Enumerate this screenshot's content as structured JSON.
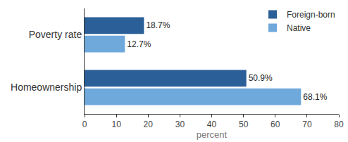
{
  "chart_data": {
    "type": "bar",
    "orientation": "horizontal",
    "categories": [
      "Poverty rate",
      "Homeownership"
    ],
    "series": [
      {
        "name": "Foreign-born",
        "color": "#2a5f97",
        "values": [
          18.7,
          50.9
        ],
        "value_labels": [
          "18.7%",
          "50.9%"
        ]
      },
      {
        "name": "Native",
        "color": "#6fa9dc",
        "values": [
          12.7,
          68.1
        ],
        "value_labels": [
          "12.7%",
          "68.1%"
        ]
      }
    ],
    "xlabel": "percent",
    "xlim": [
      0,
      80
    ],
    "xticks": [
      0,
      10,
      20,
      30,
      40,
      50,
      60,
      70,
      80
    ],
    "grid": false,
    "legend": "upper right",
    "data_labels": true
  }
}
